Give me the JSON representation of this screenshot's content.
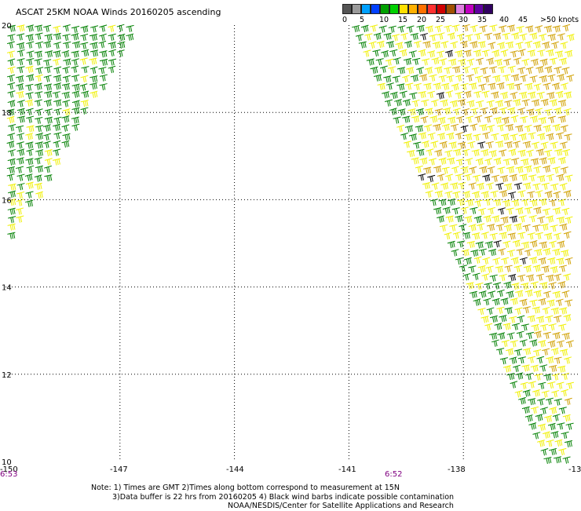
{
  "title": "ASCAT 25KM NOAA Winds 20160205 ascending",
  "legend": {
    "labels": [
      "0",
      "5",
      "10",
      "15",
      "20",
      "25",
      "30",
      "35",
      "40",
      "45",
      ">50 knots"
    ],
    "colors": [
      "#555555",
      "#9a9a9a",
      "#00a0ff",
      "#0040ff",
      "#00a000",
      "#00d000",
      "#ffe000",
      "#ffb000",
      "#ff7000",
      "#ff3030",
      "#d00000",
      "#a05000",
      "#e080e0",
      "#c000c0",
      "#6000a0",
      "#300060"
    ]
  },
  "map": {
    "lat_labels": [
      "20",
      "18",
      "16",
      "14",
      "12",
      "10"
    ],
    "lon_labels": [
      "-150",
      "-147",
      "-144",
      "-141",
      "-138",
      "-13"
    ],
    "lon_range": [
      -150,
      -135
    ],
    "lat_range": [
      10,
      20
    ],
    "grid": "dotted",
    "barb_colors": {
      "green": "#008000",
      "yellow": "#f0f000",
      "gold": "#d0a000",
      "black": "#000000"
    }
  },
  "times": {
    "left": "6:53",
    "right": "6:52"
  },
  "notes": {
    "line1": "Note: 1) Times are GMT 2)Times along bottom correspond to measurement at 15N",
    "line2": "3)Data buffer is 22 hrs from 20160205 4) Black wind barbs indicate possible contamination",
    "line3": "NOAA/NESDIS/Center for Satellite Applications and Research"
  }
}
